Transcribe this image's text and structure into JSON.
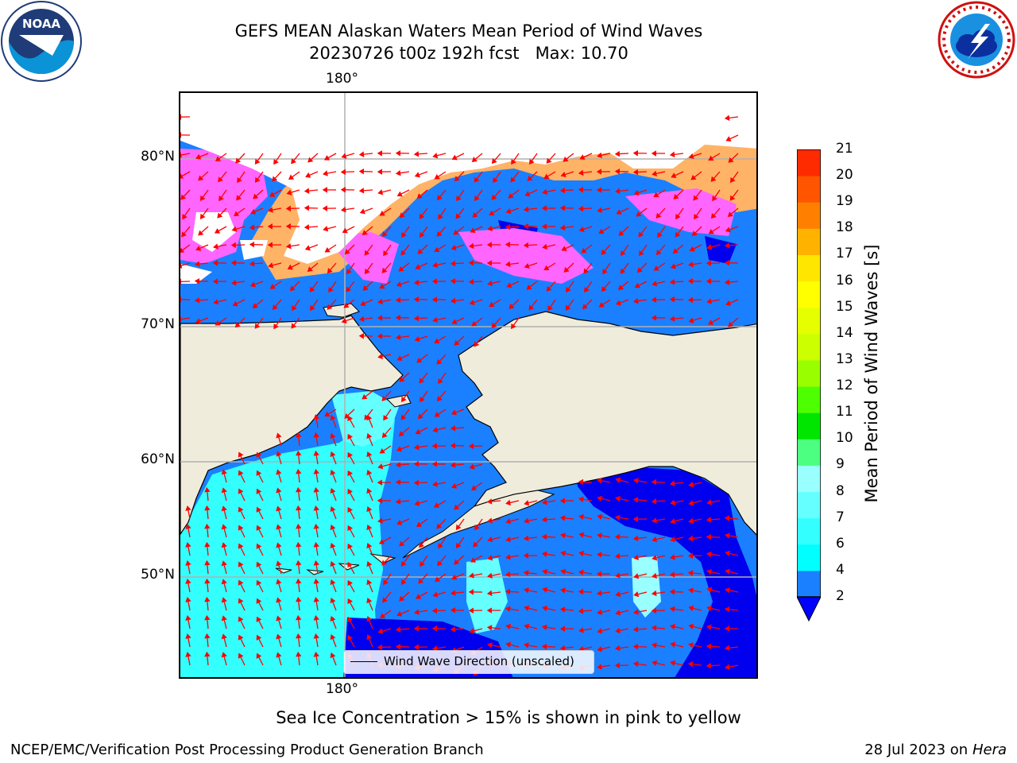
{
  "header": {
    "title_line1": "GEFS MEAN Alaskan Waters Mean Period of Wind Waves",
    "title_line2": "20230726 t00z 192h fcst   Max: 10.70"
  },
  "logos": {
    "noaa_text": "NOAA",
    "noaa_ring": "NATIONAL OCEANIC AND ATMOSPHERIC ADMINISTRATION · U.S. DEPARTMENT OF COMMERCE",
    "nws_ring": "NATIONAL WEATHER SERVICE"
  },
  "map": {
    "lon_label_top": "180°",
    "lon_label_bottom": "180°",
    "lat_labels": [
      "80°N",
      "70°N",
      "60°N",
      "50°N"
    ],
    "legend": "Wind Wave Direction (unscaled)",
    "colors": {
      "land": "#efecdc",
      "ocean_low": "#1a80ff",
      "ocean_deep": "#0000ee",
      "swell": "#33ffff",
      "ice_pink": "#ff66ff",
      "ice_orange": "#ffb366",
      "arrows": "#ff0000"
    }
  },
  "colorbar": {
    "label": "Mean Period of Wind Waves [s]",
    "ticks": [
      "2",
      "4",
      "6",
      "7",
      "8",
      "9",
      "10",
      "11",
      "12",
      "13",
      "14",
      "15",
      "16",
      "17",
      "18",
      "19",
      "20",
      "21"
    ],
    "colors": [
      "#1a80ff",
      "#00ffff",
      "#33ffff",
      "#66ffff",
      "#99ffff",
      "#4dff80",
      "#00e600",
      "#4dff00",
      "#99ff00",
      "#ccff00",
      "#e6ff00",
      "#ffff00",
      "#ffe600",
      "#ffb300",
      "#ff8000",
      "#ff5500",
      "#ff2b00",
      "#ff0000"
    ],
    "under_color": "#0000ff"
  },
  "caption": "Sea Ice Concentration > 15% is shown in pink to yellow",
  "footer": {
    "left": "NCEP/EMC/Verification Post Processing Product Generation Branch",
    "right_date": "28 Jul 2023 on ",
    "right_host": "Hera"
  }
}
